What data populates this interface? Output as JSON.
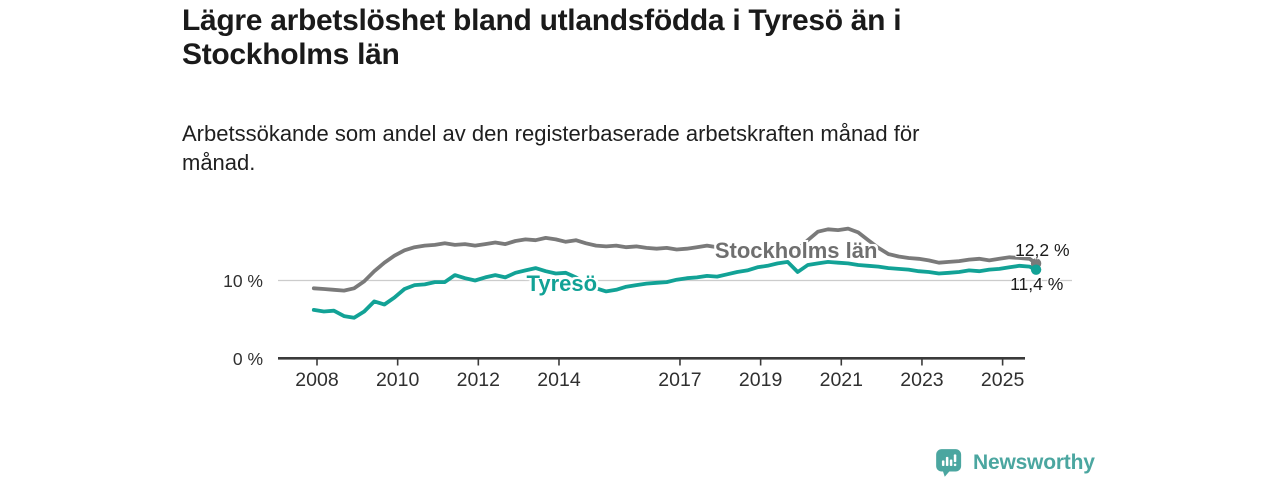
{
  "title_lines": [
    "Lägre arbetslöshet bland utlandsfödda i Tyresö än i",
    "Stockholms län"
  ],
  "subtitle_lines": [
    "Arbetssökande som andel av den registerbaserade arbetskraften månad för",
    "månad."
  ],
  "footer": {
    "brand": "Newsworthy"
  },
  "colors": {
    "tyreso": "#12a296",
    "stockholm": "#7a7a7a",
    "stockholm_label": "#6f6f6f",
    "axis": "#333333",
    "grid": "#cccccc",
    "tick_text": "#303030",
    "title_text": "#1a1a1a",
    "brand": "#4ba6a0"
  },
  "chart_data": {
    "type": "line",
    "title": "Lägre arbetslöshet bland utlandsfödda i Tyresö än i Stockholms län",
    "subtitle": "Arbetssökande som andel av den registerbaserade arbetskraften månad för månad.",
    "xlabel": "",
    "ylabel": "%",
    "xlim": [
      2007.9,
      2026.7
    ],
    "ylim": [
      0,
      17.5
    ],
    "grid": "horizontal-10-only",
    "legend_position": "inline-labels",
    "x_tick_years": [
      2008,
      2010,
      2012,
      2014,
      2017,
      2019,
      2021,
      2023,
      2025
    ],
    "y_ticks": [
      {
        "value": 0,
        "label": "0 %"
      },
      {
        "value": 10,
        "label": "10 %"
      }
    ],
    "x": [
      2007.92,
      2008.17,
      2008.42,
      2008.67,
      2008.92,
      2009.17,
      2009.42,
      2009.67,
      2009.92,
      2010.17,
      2010.42,
      2010.67,
      2010.92,
      2011.17,
      2011.42,
      2011.67,
      2011.92,
      2012.17,
      2012.42,
      2012.67,
      2012.92,
      2013.17,
      2013.42,
      2013.67,
      2013.92,
      2014.17,
      2014.42,
      2014.67,
      2014.92,
      2015.17,
      2015.42,
      2015.67,
      2015.92,
      2016.17,
      2016.42,
      2016.67,
      2016.92,
      2017.17,
      2017.42,
      2017.67,
      2017.92,
      2018.17,
      2018.42,
      2018.67,
      2018.92,
      2019.17,
      2019.42,
      2019.67,
      2019.92,
      2020.17,
      2020.42,
      2020.67,
      2020.92,
      2021.17,
      2021.42,
      2021.67,
      2021.92,
      2022.17,
      2022.42,
      2022.67,
      2022.92,
      2023.17,
      2023.42,
      2023.67,
      2023.92,
      2024.17,
      2024.42,
      2024.67,
      2024.92,
      2025.17,
      2025.42,
      2025.67,
      2025.83
    ],
    "series": [
      {
        "name": "Stockholms län",
        "color": "#7a7a7a",
        "end_label": "12,2 %",
        "end_value": 12.2,
        "label_pos": {
          "x": 2019.88,
          "y": 13.8
        },
        "values": [
          9.0,
          8.9,
          8.8,
          8.7,
          9.0,
          9.9,
          11.2,
          12.3,
          13.2,
          13.9,
          14.3,
          14.5,
          14.6,
          14.8,
          14.6,
          14.7,
          14.5,
          14.7,
          14.9,
          14.7,
          15.1,
          15.3,
          15.2,
          15.5,
          15.3,
          15.0,
          15.2,
          14.8,
          14.5,
          14.4,
          14.5,
          14.3,
          14.4,
          14.2,
          14.1,
          14.2,
          14.0,
          14.1,
          14.3,
          14.5,
          14.3,
          14.2,
          14.1,
          14.0,
          13.9,
          13.8,
          13.7,
          13.8,
          14.0,
          15.2,
          16.3,
          16.6,
          16.5,
          16.7,
          16.2,
          15.2,
          14.2,
          13.4,
          13.1,
          12.9,
          12.8,
          12.6,
          12.3,
          12.4,
          12.5,
          12.7,
          12.8,
          12.6,
          12.8,
          13.0,
          12.9,
          12.8,
          12.2
        ]
      },
      {
        "name": "Tyresö",
        "color": "#12a296",
        "end_label": "11,4 %",
        "end_value": 11.4,
        "label_pos": {
          "x": 2014.07,
          "y": 9.6
        },
        "values": [
          6.2,
          6.0,
          6.1,
          5.4,
          5.2,
          6.0,
          7.3,
          6.9,
          7.8,
          8.9,
          9.4,
          9.5,
          9.8,
          9.8,
          10.7,
          10.3,
          10.0,
          10.4,
          10.7,
          10.4,
          11.0,
          11.3,
          11.6,
          11.2,
          10.9,
          11.0,
          10.4,
          9.6,
          9.0,
          8.6,
          8.8,
          9.2,
          9.4,
          9.6,
          9.7,
          9.8,
          10.1,
          10.3,
          10.4,
          10.6,
          10.5,
          10.8,
          11.1,
          11.3,
          11.7,
          11.9,
          12.2,
          12.4,
          11.1,
          12.0,
          12.2,
          12.4,
          12.3,
          12.2,
          12.0,
          11.9,
          11.8,
          11.6,
          11.5,
          11.4,
          11.2,
          11.1,
          10.9,
          11.0,
          11.1,
          11.3,
          11.2,
          11.4,
          11.5,
          11.7,
          11.9,
          11.8,
          11.4
        ]
      }
    ]
  }
}
